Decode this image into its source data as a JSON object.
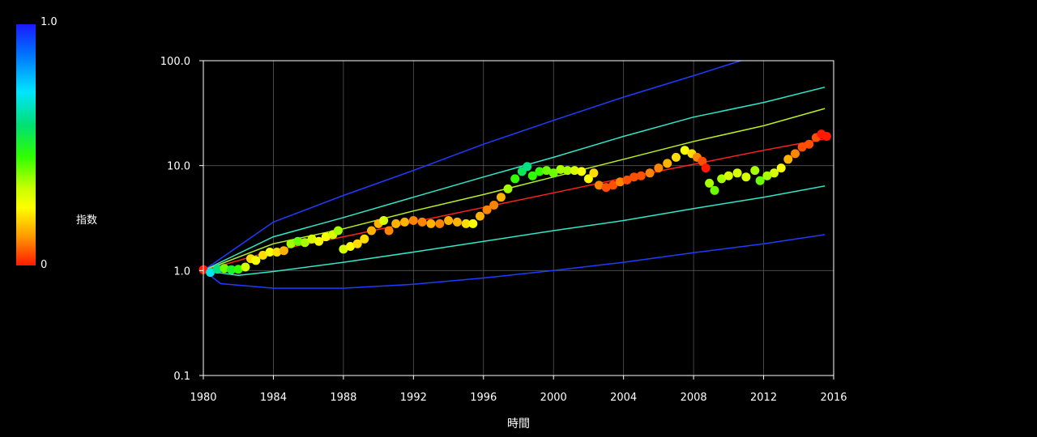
{
  "colorbar": {
    "label": "指数",
    "max_label": "1.0",
    "min_label": "0"
  },
  "chart_data": {
    "type": "scatter",
    "title": "",
    "xlabel": "時間",
    "ylabel": "",
    "xlim": [
      1980,
      2016
    ],
    "ylim": [
      0.1,
      100
    ],
    "y_scale": "log",
    "x_ticks": [
      "1980",
      "1984",
      "1988",
      "1992",
      "1996",
      "2000",
      "2004",
      "2008",
      "2012",
      "2016"
    ],
    "y_ticks": [
      "100.0",
      "10.0",
      "1.0",
      "0.1"
    ],
    "grid": true,
    "colors": {
      "background": "#000000",
      "axis": "#ffffff",
      "grid": "#555555"
    },
    "bands": [
      {
        "name": "",
        "color": "#1f3cff",
        "points": [
          [
            1980,
            1.0
          ],
          [
            1984,
            2.9
          ],
          [
            1988,
            5.2
          ],
          [
            1992,
            9.0
          ],
          [
            1996,
            16
          ],
          [
            2000,
            27
          ],
          [
            2004,
            45
          ],
          [
            2008,
            72
          ],
          [
            2010.7,
            100
          ]
        ]
      },
      {
        "name": "",
        "color": "#30e8c8",
        "points": [
          [
            1980,
            1.0
          ],
          [
            1984,
            2.1
          ],
          [
            1988,
            3.2
          ],
          [
            1992,
            5.0
          ],
          [
            1996,
            7.8
          ],
          [
            2000,
            12
          ],
          [
            2004,
            19
          ],
          [
            2008,
            29
          ],
          [
            2012,
            40
          ],
          [
            2015.5,
            56
          ]
        ]
      },
      {
        "name": "",
        "color": "#b8f020",
        "points": [
          [
            1980,
            1.0
          ],
          [
            1984,
            1.8
          ],
          [
            1988,
            2.5
          ],
          [
            1992,
            3.7
          ],
          [
            1996,
            5.3
          ],
          [
            2000,
            7.8
          ],
          [
            2004,
            11.5
          ],
          [
            2008,
            17
          ],
          [
            2012,
            24
          ],
          [
            2015.5,
            35
          ]
        ]
      },
      {
        "name": "",
        "color": "#ff2020",
        "points": [
          [
            1980,
            1.0
          ],
          [
            1984,
            1.55
          ],
          [
            1988,
            2.1
          ],
          [
            1992,
            2.9
          ],
          [
            1996,
            4.0
          ],
          [
            2000,
            5.5
          ],
          [
            2004,
            7.6
          ],
          [
            2008,
            10.3
          ],
          [
            2012,
            14
          ],
          [
            2015.5,
            18
          ]
        ]
      },
      {
        "name": "",
        "color": "#30e8c8",
        "points": [
          [
            1980,
            1.0
          ],
          [
            1982,
            0.9
          ],
          [
            1984,
            0.98
          ],
          [
            1988,
            1.2
          ],
          [
            1992,
            1.5
          ],
          [
            1996,
            1.9
          ],
          [
            2000,
            2.4
          ],
          [
            2004,
            3.0
          ],
          [
            2008,
            3.9
          ],
          [
            2012,
            5.0
          ],
          [
            2015.5,
            6.4
          ]
        ]
      },
      {
        "name": "",
        "color": "#1f3cff",
        "points": [
          [
            1980,
            1.0
          ],
          [
            1981,
            0.75
          ],
          [
            1984,
            0.68
          ],
          [
            1988,
            0.68
          ],
          [
            1992,
            0.74
          ],
          [
            1996,
            0.85
          ],
          [
            2000,
            1.0
          ],
          [
            2004,
            1.2
          ],
          [
            2008,
            1.48
          ],
          [
            2012,
            1.8
          ],
          [
            2015.5,
            2.2
          ]
        ]
      }
    ],
    "series": [
      {
        "name": "",
        "points": [
          [
            1980.0,
            1.02,
            0.0
          ],
          [
            1980.4,
            0.96,
            0.7
          ],
          [
            1980.8,
            1.03,
            0.6
          ],
          [
            1981.2,
            1.05,
            0.4
          ],
          [
            1981.6,
            1.02,
            0.5
          ],
          [
            1982.0,
            1.03,
            0.45
          ],
          [
            1982.4,
            1.08,
            0.3
          ],
          [
            1982.7,
            1.3,
            0.2
          ],
          [
            1983.0,
            1.25,
            0.25
          ],
          [
            1983.4,
            1.4,
            0.2
          ],
          [
            1983.8,
            1.5,
            0.25
          ],
          [
            1984.2,
            1.5,
            0.2
          ],
          [
            1984.6,
            1.55,
            0.15
          ],
          [
            1985.0,
            1.8,
            0.35
          ],
          [
            1985.4,
            1.9,
            0.4
          ],
          [
            1985.8,
            1.85,
            0.35
          ],
          [
            1986.2,
            2.0,
            0.3
          ],
          [
            1986.6,
            1.9,
            0.25
          ],
          [
            1987.0,
            2.1,
            0.25
          ],
          [
            1987.4,
            2.2,
            0.3
          ],
          [
            1987.7,
            2.4,
            0.35
          ],
          [
            1988.0,
            1.6,
            0.3
          ],
          [
            1988.4,
            1.7,
            0.25
          ],
          [
            1988.8,
            1.8,
            0.2
          ],
          [
            1989.2,
            2.0,
            0.2
          ],
          [
            1989.6,
            2.4,
            0.15
          ],
          [
            1990.0,
            2.8,
            0.15
          ],
          [
            1990.3,
            3.0,
            0.3
          ],
          [
            1990.6,
            2.4,
            0.1
          ],
          [
            1991.0,
            2.8,
            0.15
          ],
          [
            1991.5,
            2.9,
            0.15
          ],
          [
            1992.0,
            3.0,
            0.1
          ],
          [
            1992.5,
            2.9,
            0.1
          ],
          [
            1993.0,
            2.8,
            0.15
          ],
          [
            1993.5,
            2.8,
            0.1
          ],
          [
            1994.0,
            3.0,
            0.15
          ],
          [
            1994.5,
            2.9,
            0.15
          ],
          [
            1995.0,
            2.8,
            0.2
          ],
          [
            1995.4,
            2.8,
            0.25
          ],
          [
            1995.8,
            3.3,
            0.15
          ],
          [
            1996.2,
            3.8,
            0.1
          ],
          [
            1996.6,
            4.2,
            0.1
          ],
          [
            1997.0,
            5.0,
            0.15
          ],
          [
            1997.4,
            6.0,
            0.35
          ],
          [
            1997.8,
            7.5,
            0.45
          ],
          [
            1998.2,
            8.8,
            0.55
          ],
          [
            1998.5,
            9.8,
            0.6
          ],
          [
            1998.8,
            8.0,
            0.45
          ],
          [
            1999.2,
            8.8,
            0.45
          ],
          [
            1999.6,
            9.0,
            0.4
          ],
          [
            2000.0,
            8.5,
            0.4
          ],
          [
            2000.4,
            9.2,
            0.35
          ],
          [
            2000.8,
            9.0,
            0.35
          ],
          [
            2001.2,
            9.0,
            0.3
          ],
          [
            2001.6,
            8.8,
            0.25
          ],
          [
            2002.0,
            7.5,
            0.25
          ],
          [
            2002.3,
            8.5,
            0.2
          ],
          [
            2002.6,
            6.5,
            0.1
          ],
          [
            2003.0,
            6.2,
            0.05
          ],
          [
            2003.4,
            6.5,
            0.05
          ],
          [
            2003.8,
            7.0,
            0.1
          ],
          [
            2004.2,
            7.3,
            0.05
          ],
          [
            2004.6,
            7.8,
            0.05
          ],
          [
            2005.0,
            8.0,
            0.05
          ],
          [
            2005.5,
            8.5,
            0.1
          ],
          [
            2006.0,
            9.5,
            0.1
          ],
          [
            2006.5,
            10.5,
            0.15
          ],
          [
            2007.0,
            12.0,
            0.2
          ],
          [
            2007.5,
            14.0,
            0.25
          ],
          [
            2007.9,
            13.0,
            0.2
          ],
          [
            2008.2,
            12.0,
            0.1
          ],
          [
            2008.5,
            11.0,
            0.05
          ],
          [
            2008.7,
            9.5,
            0.0
          ],
          [
            2008.9,
            6.8,
            0.35
          ],
          [
            2009.2,
            5.8,
            0.4
          ],
          [
            2009.6,
            7.5,
            0.35
          ],
          [
            2010.0,
            8.0,
            0.3
          ],
          [
            2010.5,
            8.5,
            0.3
          ],
          [
            2011.0,
            7.8,
            0.3
          ],
          [
            2011.5,
            9.0,
            0.35
          ],
          [
            2011.8,
            7.2,
            0.4
          ],
          [
            2012.2,
            8.0,
            0.35
          ],
          [
            2012.6,
            8.5,
            0.3
          ],
          [
            2013.0,
            9.5,
            0.25
          ],
          [
            2013.4,
            11.5,
            0.15
          ],
          [
            2013.8,
            13.0,
            0.1
          ],
          [
            2014.2,
            15.0,
            0.05
          ],
          [
            2014.6,
            16.0,
            0.05
          ],
          [
            2015.0,
            18.5,
            0.05
          ],
          [
            2015.3,
            20.0,
            0.0
          ],
          [
            2015.6,
            19.0,
            0.0
          ]
        ]
      }
    ]
  }
}
